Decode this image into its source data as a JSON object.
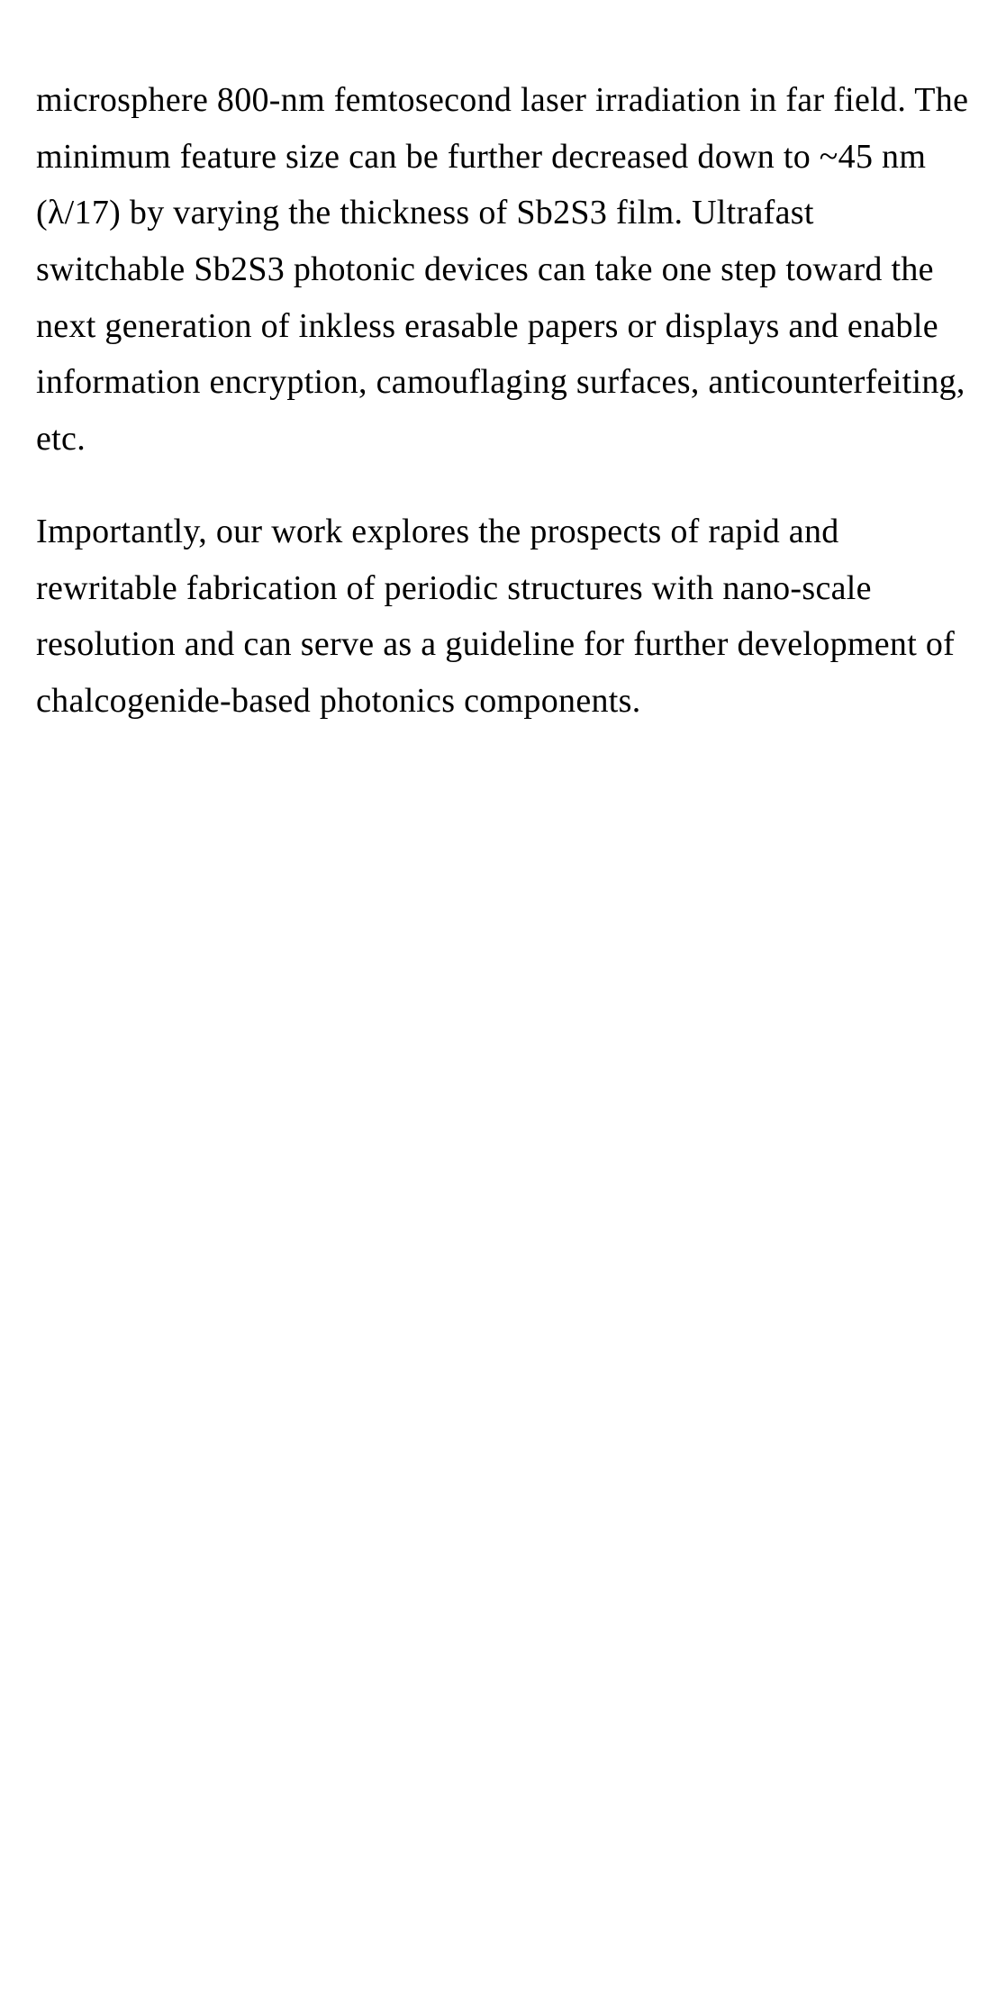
{
  "document": {
    "paragraphs": [
      {
        "text": "microsphere 800-nm femtosecond laser irradiation in far field. The minimum feature size can be further decreased down to ~45 nm (λ/17) by varying the thickness of Sb2S3 film. Ultrafast switchable Sb2S3 photonic devices can take one step toward the next generation of inkless erasable papers or displays and enable information encryption, camouflaging surfaces, anticounterfeiting, etc."
      },
      {
        "text": "Importantly, our work explores the prospects of rapid and rewritable fabrication of periodic structures with nano-scale resolution and can serve as a guideline for further development of chalcogenide-based photonics components."
      }
    ],
    "styling": {
      "background_color": "#ffffff",
      "text_color": "#000000",
      "font_size": 38,
      "line_height": 1.65,
      "font_family": "Georgia, 'Times New Roman', serif"
    }
  }
}
